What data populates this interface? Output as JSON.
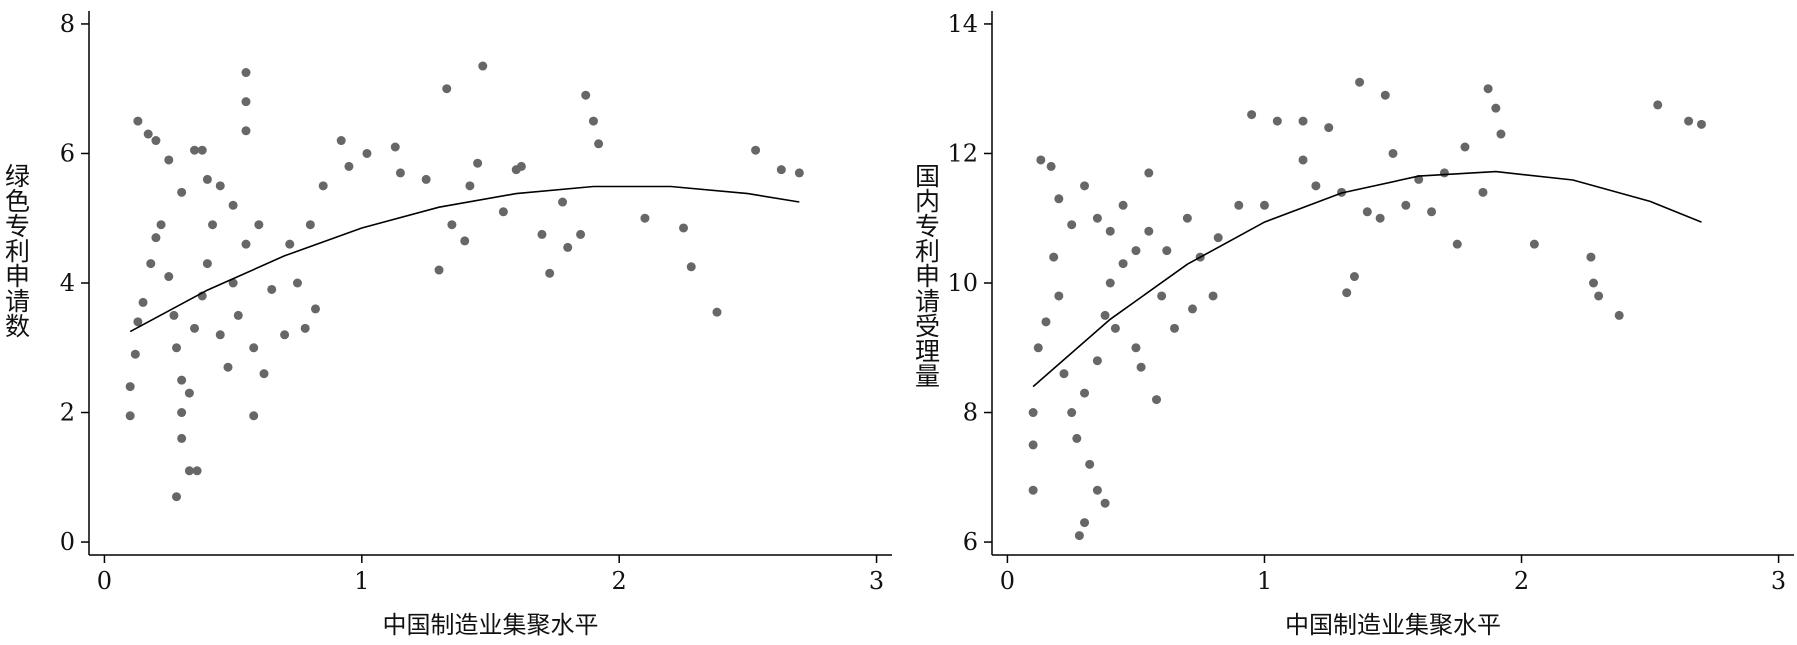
{
  "chart_data": [
    {
      "type": "scatter",
      "x_label": "中国制造业集聚水平",
      "y_label": "绿色专利申请数",
      "xlim": [
        -0.06,
        3.06
      ],
      "ylim": [
        -0.2,
        8.2
      ],
      "xticks": [
        0,
        1,
        2,
        3
      ],
      "yticks": [
        0,
        2,
        4,
        6,
        8
      ],
      "series": [
        {
          "color": "#676767",
          "x": [
            0.13,
            0.17,
            0.2,
            0.25,
            0.3,
            0.35,
            0.38,
            0.4,
            0.45,
            0.5,
            0.55,
            0.55,
            0.55,
            0.1,
            0.1,
            0.12,
            0.13,
            0.15,
            0.18,
            0.2,
            0.22,
            0.25,
            0.27,
            0.28,
            0.3,
            0.3,
            0.3,
            0.33,
            0.36,
            0.28,
            0.33,
            0.35,
            0.38,
            0.4,
            0.42,
            0.45,
            0.48,
            0.5,
            0.52,
            0.55,
            0.58,
            0.58,
            0.6,
            0.62,
            0.65,
            0.7,
            0.72,
            0.75,
            0.78,
            0.8,
            0.82,
            0.85,
            0.92,
            0.95,
            1.02,
            1.13,
            1.15,
            1.25,
            1.3,
            1.33,
            1.35,
            1.4,
            1.42,
            1.47,
            1.55,
            1.62,
            1.7,
            1.73,
            1.78,
            1.8,
            1.85,
            1.87,
            1.9,
            1.92,
            2.1,
            2.25,
            2.28,
            2.38,
            2.53,
            2.63,
            2.7,
            1.6,
            1.45
          ],
          "values": [
            6.5,
            6.3,
            6.2,
            5.9,
            5.4,
            6.05,
            6.05,
            5.6,
            5.5,
            5.2,
            7.25,
            6.8,
            6.35,
            1.95,
            2.4,
            2.9,
            3.4,
            3.7,
            4.3,
            4.7,
            4.9,
            4.1,
            3.5,
            3.0,
            2.5,
            2.0,
            1.6,
            1.1,
            1.1,
            0.7,
            2.3,
            3.3,
            3.8,
            4.3,
            4.9,
            3.2,
            2.7,
            4.0,
            3.5,
            4.6,
            3.0,
            1.95,
            4.9,
            2.6,
            3.9,
            3.2,
            4.6,
            4.0,
            3.3,
            4.9,
            3.6,
            5.5,
            6.2,
            5.8,
            6.0,
            6.1,
            5.7,
            5.6,
            4.2,
            7.0,
            4.9,
            4.65,
            5.5,
            7.35,
            5.1,
            5.8,
            4.75,
            4.15,
            5.25,
            4.55,
            4.75,
            6.9,
            6.5,
            6.15,
            5.0,
            4.85,
            4.25,
            3.55,
            6.05,
            5.75,
            5.7,
            5.75,
            5.85
          ]
        },
        {
          "type": "line",
          "color": "#000000",
          "x": [
            0.1,
            0.4,
            0.7,
            1.0,
            1.3,
            1.6,
            1.9,
            2.2,
            2.5,
            2.7
          ],
          "values": [
            3.25,
            3.89,
            4.42,
            4.85,
            5.17,
            5.38,
            5.49,
            5.49,
            5.38,
            5.25
          ]
        }
      ]
    },
    {
      "type": "scatter",
      "x_label": "中国制造业集聚水平",
      "y_label": "国内专利申请受理量",
      "xlim": [
        -0.06,
        3.06
      ],
      "ylim": [
        5.8,
        14.2
      ],
      "xticks": [
        0,
        1,
        2,
        3
      ],
      "yticks": [
        6,
        8,
        10,
        12,
        14
      ],
      "series": [
        {
          "color": "#676767",
          "x": [
            0.13,
            0.17,
            0.2,
            0.25,
            0.3,
            0.35,
            0.4,
            0.45,
            0.5,
            0.55,
            0.1,
            0.1,
            0.1,
            0.12,
            0.15,
            0.18,
            0.2,
            0.22,
            0.25,
            0.27,
            0.28,
            0.3,
            0.32,
            0.35,
            0.38,
            0.3,
            0.35,
            0.38,
            0.4,
            0.42,
            0.45,
            0.5,
            0.52,
            0.55,
            0.58,
            0.6,
            0.62,
            0.65,
            0.7,
            0.72,
            0.75,
            0.8,
            0.82,
            0.9,
            0.95,
            1.0,
            1.05,
            1.15,
            1.15,
            1.2,
            1.25,
            1.3,
            1.32,
            1.35,
            1.37,
            1.4,
            1.45,
            1.47,
            1.5,
            1.55,
            1.6,
            1.65,
            1.7,
            1.75,
            1.78,
            1.85,
            1.87,
            1.9,
            1.92,
            2.05,
            2.27,
            2.28,
            2.3,
            2.38,
            2.53,
            2.65,
            2.7
          ],
          "values": [
            11.9,
            11.8,
            11.3,
            10.9,
            11.5,
            11.0,
            10.8,
            11.2,
            10.5,
            11.7,
            6.8,
            7.5,
            8.0,
            9.0,
            9.4,
            10.4,
            9.8,
            8.6,
            8.0,
            7.6,
            6.1,
            6.3,
            7.2,
            6.8,
            6.6,
            8.3,
            8.8,
            9.5,
            10.0,
            9.3,
            10.3,
            9.0,
            8.7,
            10.8,
            8.2,
            9.8,
            10.5,
            9.3,
            11.0,
            9.6,
            10.4,
            9.8,
            10.7,
            11.2,
            12.6,
            11.2,
            12.5,
            12.5,
            11.9,
            11.5,
            12.4,
            11.4,
            9.85,
            10.1,
            13.1,
            11.1,
            11.0,
            12.9,
            12.0,
            11.2,
            11.6,
            11.1,
            11.7,
            10.6,
            12.1,
            11.4,
            13.0,
            12.7,
            12.3,
            10.6,
            10.4,
            10.0,
            9.8,
            9.5,
            12.75,
            12.5,
            12.45
          ]
        },
        {
          "type": "line",
          "color": "#000000",
          "x": [
            0.1,
            0.4,
            0.7,
            1.0,
            1.3,
            1.6,
            1.9,
            2.2,
            2.5,
            2.7
          ],
          "values": [
            8.4,
            9.44,
            10.29,
            10.94,
            11.39,
            11.65,
            11.72,
            11.59,
            11.26,
            10.94
          ]
        }
      ]
    }
  ]
}
